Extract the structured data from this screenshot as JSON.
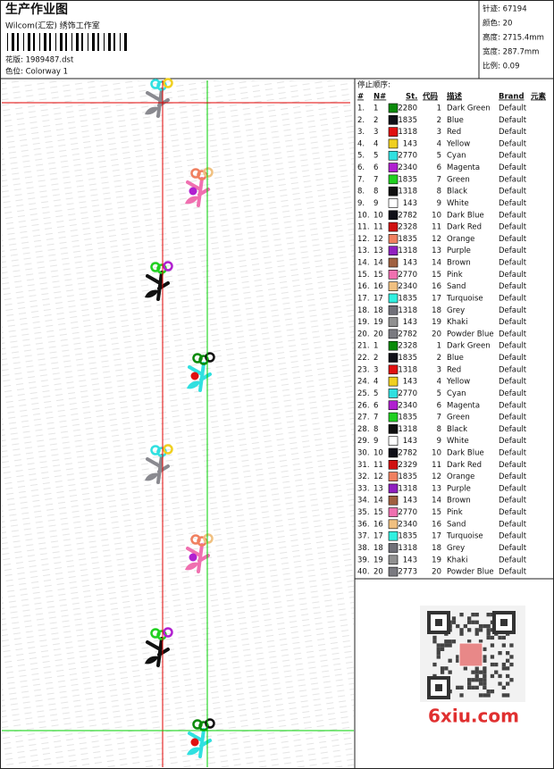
{
  "header": {
    "title": "生产作业图",
    "subtitle": "Wilcom(汇宏) 绣饰工作室",
    "design": "花版:  1989487.dst",
    "colorway": "色位:  Colorway 1"
  },
  "info": [
    "针迹:  67194",
    "颜色:  20",
    "高度:  2715.4mm",
    "宽度:  287.7mm",
    "比例:  0.09"
  ],
  "table": {
    "title": "停止顺序:",
    "columns": [
      "#",
      "N#",
      "St.",
      "代码",
      "描述",
      "Brand",
      "元素"
    ],
    "rows": [
      {
        "stop": "1.",
        "needle": "1",
        "color": "#0a8a0a",
        "code": "2280",
        "seq": "1",
        "name": "Dark Green",
        "brand": "Default"
      },
      {
        "stop": "2.",
        "needle": "2",
        "color": "#101018",
        "code": "1835",
        "seq": "2",
        "name": "Blue",
        "brand": "Default"
      },
      {
        "stop": "3.",
        "needle": "3",
        "color": "#e01010",
        "code": "1318",
        "seq": "3",
        "name": "Red",
        "brand": "Default"
      },
      {
        "stop": "4.",
        "needle": "4",
        "color": "#f0d020",
        "code": "143",
        "seq": "4",
        "name": "Yellow",
        "brand": "Default"
      },
      {
        "stop": "5.",
        "needle": "5",
        "color": "#30e0e0",
        "code": "2770",
        "seq": "5",
        "name": "Cyan",
        "brand": "Default"
      },
      {
        "stop": "6.",
        "needle": "6",
        "color": "#b020d0",
        "code": "2340",
        "seq": "6",
        "name": "Magenta",
        "brand": "Default"
      },
      {
        "stop": "7.",
        "needle": "7",
        "color": "#20d020",
        "code": "1835",
        "seq": "7",
        "name": "Green",
        "brand": "Default"
      },
      {
        "stop": "8.",
        "needle": "8",
        "color": "#101010",
        "code": "1318",
        "seq": "8",
        "name": "Black",
        "brand": "Default"
      },
      {
        "stop": "9.",
        "needle": "9",
        "color": "#ffffff",
        "code": "143",
        "seq": "9",
        "name": "White",
        "brand": "Default"
      },
      {
        "stop": "10.",
        "needle": "10",
        "color": "#101018",
        "code": "2782",
        "seq": "10",
        "name": "Dark Blue",
        "brand": "Default"
      },
      {
        "stop": "11.",
        "needle": "11",
        "color": "#d01010",
        "code": "2328",
        "seq": "11",
        "name": "Dark Red",
        "brand": "Default"
      },
      {
        "stop": "12.",
        "needle": "12",
        "color": "#f08060",
        "code": "1835",
        "seq": "12",
        "name": "Orange",
        "brand": "Default"
      },
      {
        "stop": "13.",
        "needle": "13",
        "color": "#9020c0",
        "code": "1318",
        "seq": "13",
        "name": "Purple",
        "brand": "Default"
      },
      {
        "stop": "14.",
        "needle": "14",
        "color": "#a06040",
        "code": "143",
        "seq": "14",
        "name": "Brown",
        "brand": "Default"
      },
      {
        "stop": "15.",
        "needle": "15",
        "color": "#f070b0",
        "code": "2770",
        "seq": "15",
        "name": "Pink",
        "brand": "Default"
      },
      {
        "stop": "16.",
        "needle": "16",
        "color": "#f0c080",
        "code": "2340",
        "seq": "16",
        "name": "Sand",
        "brand": "Default"
      },
      {
        "stop": "17.",
        "needle": "17",
        "color": "#30f0e0",
        "code": "1835",
        "seq": "17",
        "name": "Turquoise",
        "brand": "Default"
      },
      {
        "stop": "18.",
        "needle": "18",
        "color": "#707078",
        "code": "1318",
        "seq": "18",
        "name": "Grey",
        "brand": "Default"
      },
      {
        "stop": "19.",
        "needle": "19",
        "color": "#909090",
        "code": "143",
        "seq": "19",
        "name": "Khaki",
        "brand": "Default"
      },
      {
        "stop": "20.",
        "needle": "20",
        "color": "#7a7a80",
        "code": "2782",
        "seq": "20",
        "name": "Powder Blue",
        "brand": "Default"
      },
      {
        "stop": "21.",
        "needle": "1",
        "color": "#0a8a0a",
        "code": "2328",
        "seq": "1",
        "name": "Dark Green",
        "brand": "Default"
      },
      {
        "stop": "22.",
        "needle": "2",
        "color": "#101018",
        "code": "1835",
        "seq": "2",
        "name": "Blue",
        "brand": "Default"
      },
      {
        "stop": "23.",
        "needle": "3",
        "color": "#e01010",
        "code": "1318",
        "seq": "3",
        "name": "Red",
        "brand": "Default"
      },
      {
        "stop": "24.",
        "needle": "4",
        "color": "#f0d020",
        "code": "143",
        "seq": "4",
        "name": "Yellow",
        "brand": "Default"
      },
      {
        "stop": "25.",
        "needle": "5",
        "color": "#30e0e0",
        "code": "2770",
        "seq": "5",
        "name": "Cyan",
        "brand": "Default"
      },
      {
        "stop": "26.",
        "needle": "6",
        "color": "#b020d0",
        "code": "2340",
        "seq": "6",
        "name": "Magenta",
        "brand": "Default"
      },
      {
        "stop": "27.",
        "needle": "7",
        "color": "#20d020",
        "code": "1835",
        "seq": "7",
        "name": "Green",
        "brand": "Default"
      },
      {
        "stop": "28.",
        "needle": "8",
        "color": "#101010",
        "code": "1318",
        "seq": "8",
        "name": "Black",
        "brand": "Default"
      },
      {
        "stop": "29.",
        "needle": "9",
        "color": "#ffffff",
        "code": "143",
        "seq": "9",
        "name": "White",
        "brand": "Default"
      },
      {
        "stop": "30.",
        "needle": "10",
        "color": "#101018",
        "code": "2782",
        "seq": "10",
        "name": "Dark Blue",
        "brand": "Default"
      },
      {
        "stop": "31.",
        "needle": "11",
        "color": "#d01010",
        "code": "2329",
        "seq": "11",
        "name": "Dark Red",
        "brand": "Default"
      },
      {
        "stop": "32.",
        "needle": "12",
        "color": "#f08060",
        "code": "1835",
        "seq": "12",
        "name": "Orange",
        "brand": "Default"
      },
      {
        "stop": "33.",
        "needle": "13",
        "color": "#9020c0",
        "code": "1318",
        "seq": "13",
        "name": "Purple",
        "brand": "Default"
      },
      {
        "stop": "34.",
        "needle": "14",
        "color": "#a06040",
        "code": "143",
        "seq": "14",
        "name": "Brown",
        "brand": "Default"
      },
      {
        "stop": "35.",
        "needle": "15",
        "color": "#f070b0",
        "code": "2770",
        "seq": "15",
        "name": "Pink",
        "brand": "Default"
      },
      {
        "stop": "36.",
        "needle": "16",
        "color": "#f0c080",
        "code": "2340",
        "seq": "16",
        "name": "Sand",
        "brand": "Default"
      },
      {
        "stop": "37.",
        "needle": "17",
        "color": "#30f0e0",
        "code": "1835",
        "seq": "17",
        "name": "Turquoise",
        "brand": "Default"
      },
      {
        "stop": "38.",
        "needle": "18",
        "color": "#707078",
        "code": "1318",
        "seq": "18",
        "name": "Grey",
        "brand": "Default"
      },
      {
        "stop": "39.",
        "needle": "19",
        "color": "#909090",
        "code": "143",
        "seq": "19",
        "name": "Khaki",
        "brand": "Default"
      },
      {
        "stop": "40.",
        "needle": "20",
        "color": "#7a7a80",
        "code": "2773",
        "seq": "20",
        "name": "Powder Blue",
        "brand": "Default"
      }
    ]
  },
  "watermark": "6xiu.com"
}
